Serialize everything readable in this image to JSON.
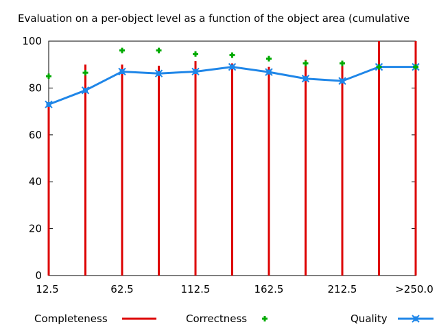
{
  "chart_data": {
    "type": "bar",
    "title": "Evaluation on a per-object level as a function of the object area (cumulative",
    "xlabel": "",
    "ylabel": "",
    "ylim": [
      0,
      100
    ],
    "yticks": [
      0,
      20,
      40,
      60,
      80,
      100
    ],
    "xtick_labels": [
      "12.5",
      "62.5",
      "112.5",
      "162.5",
      "212.5",
      ">250.0"
    ],
    "categories": [
      "12.5",
      "37.5",
      "62.5",
      "87.5",
      "112.5",
      "137.5",
      "162.5",
      "187.5",
      "212.5",
      "237.5",
      ">250.0"
    ],
    "grid": false,
    "legend_position": "bottom",
    "series": [
      {
        "name": "Completeness",
        "style": "impulses",
        "color": "#dd0000",
        "values": [
          73,
          90,
          90,
          89.5,
          91.5,
          90.5,
          89,
          92,
          91,
          100,
          100
        ]
      },
      {
        "name": "Correctness",
        "style": "points",
        "color": "#00aa00",
        "values": [
          85,
          86.5,
          96,
          96,
          94.5,
          94,
          92.5,
          90.5,
          90.5,
          89,
          89
        ]
      },
      {
        "name": "Quality",
        "style": "linespoints",
        "color": "#1f86e8",
        "values": [
          73,
          79,
          87,
          86.2,
          87,
          89,
          86.8,
          84,
          83,
          89,
          89
        ]
      }
    ]
  }
}
